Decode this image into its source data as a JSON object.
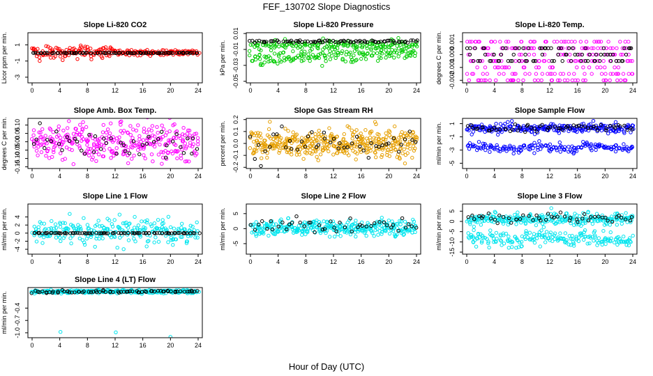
{
  "figure": {
    "title": "FEF_130702  Slope Diagnostics",
    "xlabel": "Hour of Day (UTC)"
  },
  "chart_data": [
    {
      "type": "scatter",
      "title": "Slope Li-820 CO2",
      "ylabel": "Licor ppm per min.",
      "xlim": [
        0,
        24
      ],
      "ylim": [
        -3.7,
        2.5
      ],
      "xticks": [
        "0",
        "4",
        "8",
        "12",
        "16",
        "20",
        "24"
      ],
      "yticks": [
        {
          "v": 1,
          "label": "1"
        },
        {
          "v": -1,
          "label": "-1"
        },
        {
          "v": -3,
          "label": "-3"
        }
      ],
      "series": [
        {
          "name": "all",
          "color": "#ff0000",
          "center": 0.05,
          "spread": 0.45,
          "pattern": "noisy",
          "n": 230,
          "tighten_after": 12
        },
        {
          "name": "baseline",
          "color": "#000000",
          "center": 0.0,
          "spread": 0.04,
          "pattern": "flat",
          "n": 90
        }
      ]
    },
    {
      "type": "scatter",
      "title": "Slope Li-820 Pressure",
      "ylabel": "kPa per min.",
      "xlim": [
        0,
        24
      ],
      "ylim": [
        -0.052,
        0.011
      ],
      "xticks": [
        "0",
        "4",
        "8",
        "12",
        "16",
        "20",
        "24"
      ],
      "yticks": [
        {
          "v": 0.01,
          "label": "0.01"
        },
        {
          "v": -0.01,
          "label": "-0.01"
        },
        {
          "v": -0.03,
          "label": "-0.03"
        },
        {
          "v": -0.05,
          "label": "-0.05"
        }
      ],
      "series": [
        {
          "name": "green-upper",
          "color": "#00cc00",
          "center": -0.004,
          "spread": 0.0035,
          "pattern": "noisy",
          "n": 160
        },
        {
          "name": "green-lower",
          "color": "#00cc00",
          "center": -0.018,
          "spread": 0.004,
          "pattern": "rising",
          "n": 160
        },
        {
          "name": "baseline",
          "color": "#000000",
          "center": 0.0,
          "spread": 0.0015,
          "pattern": "flat",
          "n": 80
        }
      ]
    },
    {
      "type": "scatter",
      "title": "Slope Li-820 Temp.",
      "ylabel": "degrees C per min.",
      "xlim": [
        0,
        24
      ],
      "ylim": [
        -0.0022,
        0.0017
      ],
      "xticks": [
        "0",
        "4",
        "8",
        "12",
        "16",
        "20",
        "24"
      ],
      "yticks": [
        {
          "v": 0.001,
          "label": "0.001"
        },
        {
          "v": 0,
          "label": "0.000"
        },
        {
          "v": -0.001,
          "label": "-0.001"
        },
        {
          "v": -0.002,
          "label": "-0.002"
        }
      ],
      "series": [
        {
          "name": "all",
          "color": "#ff00ff",
          "center": 0.0,
          "spread": 0.0008,
          "pattern": "levels",
          "levels": [
            0.001,
            0.0005,
            0,
            -0.0005,
            -0.001,
            -0.0015,
            -0.002
          ],
          "n": 260
        },
        {
          "name": "baseline",
          "color": "#000000",
          "center": 0.0,
          "spread": 0.0004,
          "pattern": "levels",
          "levels": [
            0.0005,
            0,
            -0.0005
          ],
          "n": 80
        }
      ]
    },
    {
      "type": "scatter",
      "title": "Slope Amb. Box Temp.",
      "ylabel": "degrees C per min.",
      "xlim": [
        0,
        24
      ],
      "ylim": [
        -0.16,
        0.14
      ],
      "xticks": [
        "0",
        "4",
        "8",
        "12",
        "16",
        "20",
        "24"
      ],
      "yticks": [
        {
          "v": 0.1,
          "label": "0.10"
        },
        {
          "v": 0.05,
          "label": "0.05"
        },
        {
          "v": 0,
          "label": "0.00"
        },
        {
          "v": -0.05,
          "label": "-0.05"
        },
        {
          "v": -0.1,
          "label": "-0.10"
        },
        {
          "v": -0.15,
          "label": "-0.15"
        }
      ],
      "series": [
        {
          "name": "all",
          "color": "#ff00ff",
          "center": 0.0,
          "spread": 0.055,
          "pattern": "noisy",
          "n": 330
        },
        {
          "name": "baseline",
          "color": "#000000",
          "center": 0.0,
          "spread": 0.045,
          "pattern": "noisy",
          "n": 45
        }
      ]
    },
    {
      "type": "scatter",
      "title": "Slope Gas Stream RH",
      "ylabel": "percent per min.",
      "xlim": [
        0,
        24
      ],
      "ylim": [
        -0.21,
        0.21
      ],
      "xticks": [
        "0",
        "4",
        "8",
        "12",
        "16",
        "20",
        "24"
      ],
      "yticks": [
        {
          "v": 0.2,
          "label": "0.2"
        },
        {
          "v": 0.1,
          "label": "0.1"
        },
        {
          "v": 0,
          "label": "0.0"
        },
        {
          "v": -0.1,
          "label": "-0.1"
        },
        {
          "v": -0.2,
          "label": "-0.2"
        }
      ],
      "series": [
        {
          "name": "all",
          "color": "#e69f00",
          "center": 0.0,
          "spread": 0.06,
          "pattern": "noisy",
          "n": 420
        },
        {
          "name": "baseline",
          "color": "#000000",
          "center": 0.0,
          "spread": 0.05,
          "pattern": "noisy",
          "n": 45
        }
      ]
    },
    {
      "type": "scatter",
      "title": "Slope Sample Flow",
      "ylabel": "ml/min per min.",
      "xlim": [
        0,
        24
      ],
      "ylim": [
        -5.8,
        1.8
      ],
      "xticks": [
        "0",
        "4",
        "8",
        "12",
        "16",
        "20",
        "24"
      ],
      "yticks": [
        {
          "v": 1,
          "label": "1"
        },
        {
          "v": -1,
          "label": "-1"
        },
        {
          "v": -3,
          "label": "-3"
        },
        {
          "v": -5,
          "label": "-5"
        }
      ],
      "series": [
        {
          "name": "upper",
          "color": "#0000ff",
          "center": 0.3,
          "spread": 0.35,
          "pattern": "noisy",
          "n": 230
        },
        {
          "name": "lower",
          "color": "#0000ff",
          "center": -2.6,
          "spread": 0.35,
          "pattern": "sawtooth",
          "n": 170
        },
        {
          "name": "baseline",
          "color": "#000000",
          "center": 0.4,
          "spread": 0.25,
          "pattern": "noisy",
          "n": 60
        }
      ]
    },
    {
      "type": "scatter",
      "title": "Slope Line 1 Flow",
      "ylabel": "ml/min per min.",
      "xlim": [
        0,
        24
      ],
      "ylim": [
        -5.2,
        7.2
      ],
      "xticks": [
        "0",
        "4",
        "8",
        "12",
        "16",
        "20",
        "24"
      ],
      "yticks": [
        {
          "v": 4,
          "label": "4"
        },
        {
          "v": 2,
          "label": "2"
        },
        {
          "v": 0,
          "label": "0"
        },
        {
          "v": -2,
          "label": "-2"
        },
        {
          "v": -4,
          "label": "-4"
        }
      ],
      "series": [
        {
          "name": "all",
          "color": "#00e5ee",
          "center": 0.3,
          "spread": 1.6,
          "pattern": "noisy",
          "n": 260
        },
        {
          "name": "baseline",
          "color": "#000000",
          "center": 0.0,
          "spread": 0.06,
          "pattern": "flat",
          "n": 85
        }
      ]
    },
    {
      "type": "scatter",
      "title": "Slope Line 2 Flow",
      "ylabel": "ml/min per min.",
      "xlim": [
        0,
        24
      ],
      "ylim": [
        -8.5,
        8.2
      ],
      "xticks": [
        "0",
        "4",
        "8",
        "12",
        "16",
        "20",
        "24"
      ],
      "yticks": [
        {
          "v": 5,
          "label": "5"
        },
        {
          "v": 0,
          "label": "0"
        },
        {
          "v": -5,
          "label": "-5"
        }
      ],
      "series": [
        {
          "name": "all",
          "color": "#00e5ee",
          "center": 0.3,
          "spread": 1.3,
          "pattern": "noisy",
          "n": 340
        },
        {
          "name": "baseline",
          "color": "#000000",
          "center": 0.6,
          "spread": 1.2,
          "pattern": "noisy",
          "n": 45
        }
      ]
    },
    {
      "type": "scatter",
      "title": "Slope Line 3 Flow",
      "ylabel": "ml/min per min.",
      "xlim": [
        0,
        24
      ],
      "ylim": [
        -16,
        8.5
      ],
      "xticks": [
        "0",
        "4",
        "8",
        "12",
        "16",
        "20",
        "24"
      ],
      "yticks": [
        {
          "v": 5,
          "label": "5"
        },
        {
          "v": 0,
          "label": "0"
        },
        {
          "v": -5,
          "label": "-5"
        },
        {
          "v": -10,
          "label": "-10"
        },
        {
          "v": -15,
          "label": "-15"
        }
      ],
      "series": [
        {
          "name": "upper",
          "color": "#00e5ee",
          "center": 1.0,
          "spread": 1.5,
          "pattern": "noisy",
          "n": 260
        },
        {
          "name": "lower",
          "color": "#00e5ee",
          "center": -8.5,
          "spread": 1.6,
          "pattern": "sawtooth",
          "n": 200
        },
        {
          "name": "baseline",
          "color": "#000000",
          "center": 1.8,
          "spread": 1.0,
          "pattern": "noisy",
          "n": 50
        }
      ]
    },
    {
      "type": "scatter",
      "title": "Slope Line 4 (LT) Flow",
      "ylabel": "ml/min per min.",
      "xlim": [
        0,
        24
      ],
      "ylim": [
        -1.12,
        0.1
      ],
      "xticks": [
        "0",
        "4",
        "8",
        "12",
        "16",
        "20",
        "24"
      ],
      "yticks": [
        {
          "v": -0.4,
          "label": "-0.4"
        },
        {
          "v": -0.7,
          "label": "-0.7"
        },
        {
          "v": -1.0,
          "label": "-1.0"
        }
      ],
      "series": [
        {
          "name": "all",
          "color": "#00e5ee",
          "center": 0.0,
          "spread": 0.02,
          "pattern": "noisy",
          "n": 300
        },
        {
          "name": "baseline",
          "color": "#000000",
          "center": 0.0,
          "spread": 0.015,
          "pattern": "noisy",
          "n": 70
        },
        {
          "name": "outliers",
          "color": "#00e5ee",
          "pattern": "points",
          "points": [
            [
              4.1,
              -0.98
            ],
            [
              12.1,
              -0.99
            ],
            [
              20.0,
              -1.1
            ]
          ]
        }
      ]
    }
  ]
}
